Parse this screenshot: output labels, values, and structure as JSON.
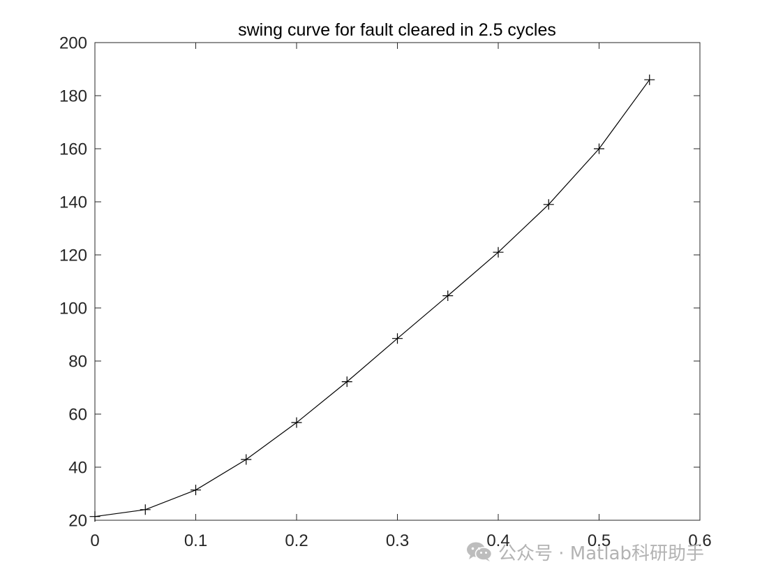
{
  "chart_data": {
    "type": "line",
    "title": "swing curve for fault cleared in 2.5 cycles",
    "xlabel": "",
    "ylabel": "",
    "xlim": [
      0,
      0.6
    ],
    "ylim": [
      20,
      200
    ],
    "x_ticks": [
      "0",
      "0.1",
      "0.2",
      "0.3",
      "0.4",
      "0.5",
      "0.6"
    ],
    "y_ticks": [
      "20",
      "40",
      "60",
      "80",
      "100",
      "120",
      "140",
      "160",
      "180",
      "200"
    ],
    "grid": false,
    "marker": "+",
    "line_color": "#000000",
    "series": [
      {
        "x": [
          0,
          0.05,
          0.1,
          0.15,
          0.2,
          0.25,
          0.3,
          0.35,
          0.4,
          0.45,
          0.5,
          0.55
        ],
        "values": [
          21.4,
          24.0,
          31.4,
          42.9,
          56.8,
          72.2,
          88.5,
          104.6,
          121.0,
          139.0,
          160.0,
          186.0
        ]
      }
    ]
  },
  "watermark": {
    "icon": "wechat-icon",
    "text": "公众号 · Matlab科研助手",
    "color": "#b3b3b3"
  }
}
